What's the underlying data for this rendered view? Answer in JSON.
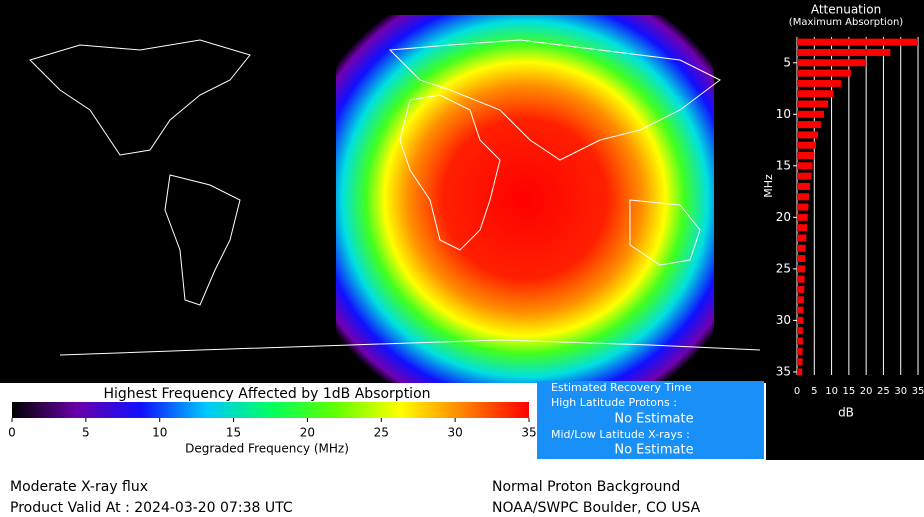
{
  "chart_data": [
    {
      "type": "colorbar",
      "title": "Highest Frequency Affected by 1dB Absorption",
      "xlabel": "Degraded Frequency (MHz)",
      "xlim": [
        0,
        35
      ],
      "xticks": [
        0,
        5,
        10,
        15,
        20,
        25,
        30,
        35
      ],
      "colors": [
        "#000000",
        "#6a00a8",
        "#1010ff",
        "#00c8ff",
        "#00ff60",
        "#60ff00",
        "#ffff00",
        "#ff8000",
        "#ff0000"
      ]
    },
    {
      "type": "bar",
      "title": "Attenuation",
      "subtitle": "(Maximum Absorption)",
      "ylabel": "MHz",
      "xlabel": "dB",
      "frequencies": [
        3,
        4,
        5,
        6,
        7,
        8,
        9,
        10,
        11,
        12,
        13,
        14,
        15,
        16,
        17,
        18,
        19,
        20,
        21,
        22,
        23,
        24,
        25,
        26,
        27,
        28,
        29,
        30,
        31,
        32,
        33,
        34,
        35
      ],
      "values": [
        35,
        27,
        20,
        15.6,
        12.7,
        10.6,
        9,
        7.8,
        6.9,
        6.1,
        5.5,
        5,
        4.5,
        4.2,
        3.8,
        3.5,
        3.3,
        3.1,
        2.9,
        2.7,
        2.5,
        2.4,
        2.3,
        2.2,
        2.1,
        2,
        1.9,
        1.8,
        1.7,
        1.7,
        1.6,
        1.6,
        1.5
      ],
      "color": "#ff0000",
      "xlim": [
        0,
        35
      ],
      "xticks": [
        0,
        5,
        10,
        15,
        20,
        25,
        30,
        35
      ],
      "ylim": [
        2.5,
        35.3
      ],
      "yticks": [
        5,
        10,
        15,
        20,
        25,
        30,
        35
      ],
      "grid": true
    }
  ],
  "recovery": {
    "title": "Estimated Recovery Time",
    "items": [
      {
        "label": "High Latitude Protons :",
        "value": "No Estimate"
      },
      {
        "label": "Mid/Low Latitude X-rays :",
        "value": "No Estimate"
      }
    ]
  },
  "footer": {
    "left": [
      "Moderate X-ray flux",
      "Product Valid At : 2024-03-20 07:38 UTC"
    ],
    "right": [
      "Normal Proton Background",
      "NOAA/SWPC Boulder, CO USA"
    ]
  }
}
